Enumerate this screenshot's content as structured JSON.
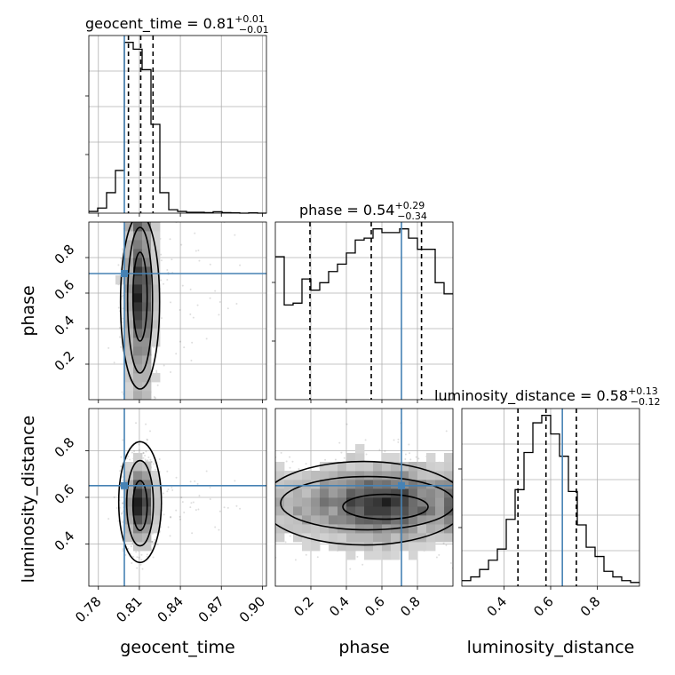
{
  "chart_data": {
    "type": "corner",
    "parameters": [
      "geocent_time",
      "phase",
      "luminosity_distance"
    ],
    "titles": [
      {
        "param": "geocent_time",
        "median": "0.81",
        "plus": "+0.01",
        "minus": "−0.01"
      },
      {
        "param": "phase",
        "median": "0.54",
        "plus": "+0.29",
        "minus": "−0.34"
      },
      {
        "param": "luminosity_distance",
        "median": "0.58",
        "plus": "+0.13",
        "minus": "−0.12"
      }
    ],
    "ranges": {
      "geocent_time": [
        0.773,
        0.903
      ],
      "phase": [
        0.0,
        1.0
      ],
      "luminosity_distance": [
        0.22,
        0.98
      ]
    },
    "ticks": {
      "geocent_time": [
        "0.78",
        "0.81",
        "0.84",
        "0.87",
        "0.90"
      ],
      "phase": [
        "0.2",
        "0.4",
        "0.6",
        "0.8"
      ],
      "luminosity_distance": [
        "0.4",
        "0.6",
        "0.8"
      ]
    },
    "truths": {
      "geocent_time": 0.799,
      "phase": 0.71,
      "luminosity_distance": 0.65
    },
    "quantiles": {
      "geocent_time": [
        0.802,
        0.811,
        0.82
      ],
      "phase": [
        0.195,
        0.54,
        0.823
      ],
      "luminosity_distance": [
        0.46,
        0.58,
        0.71
      ]
    },
    "histograms": {
      "geocent_time": {
        "edges": [
          0.773,
          0.7795,
          0.786,
          0.7925,
          0.799,
          0.8055,
          0.812,
          0.8185,
          0.825,
          0.8315,
          0.838,
          0.8445,
          0.851,
          0.8575,
          0.864,
          0.8705,
          0.877,
          0.8835,
          0.89,
          0.8965,
          0.903
        ],
        "counts": [
          1,
          3,
          12,
          25,
          100,
          96,
          84,
          52,
          12,
          2,
          1,
          0.5,
          0.5,
          0.3,
          0.8,
          0.3,
          0.2,
          0,
          0.2,
          0
        ]
      },
      "phase": {
        "edges": [
          0,
          0.05,
          0.1,
          0.15,
          0.2,
          0.25,
          0.3,
          0.35,
          0.4,
          0.45,
          0.5,
          0.55,
          0.6,
          0.65,
          0.7,
          0.75,
          0.8,
          0.85,
          0.9,
          0.95,
          1.0
        ],
        "counts": [
          77,
          51,
          52,
          65,
          59,
          63,
          69,
          73,
          79,
          86,
          87,
          92,
          90,
          90,
          92,
          87,
          81,
          81,
          63,
          57
        ]
      },
      "luminosity_distance": {
        "edges": [
          0.22,
          0.258,
          0.296,
          0.334,
          0.372,
          0.41,
          0.448,
          0.486,
          0.524,
          0.562,
          0.6,
          0.638,
          0.676,
          0.714,
          0.752,
          0.79,
          0.828,
          0.866,
          0.904,
          0.942,
          0.98
        ],
        "counts": [
          3,
          5,
          9,
          14,
          20,
          36,
          52,
          72,
          88,
          92,
          82,
          70,
          51,
          33,
          21,
          16,
          8,
          5,
          3,
          2
        ]
      }
    },
    "truth_color": "#4682b4"
  }
}
